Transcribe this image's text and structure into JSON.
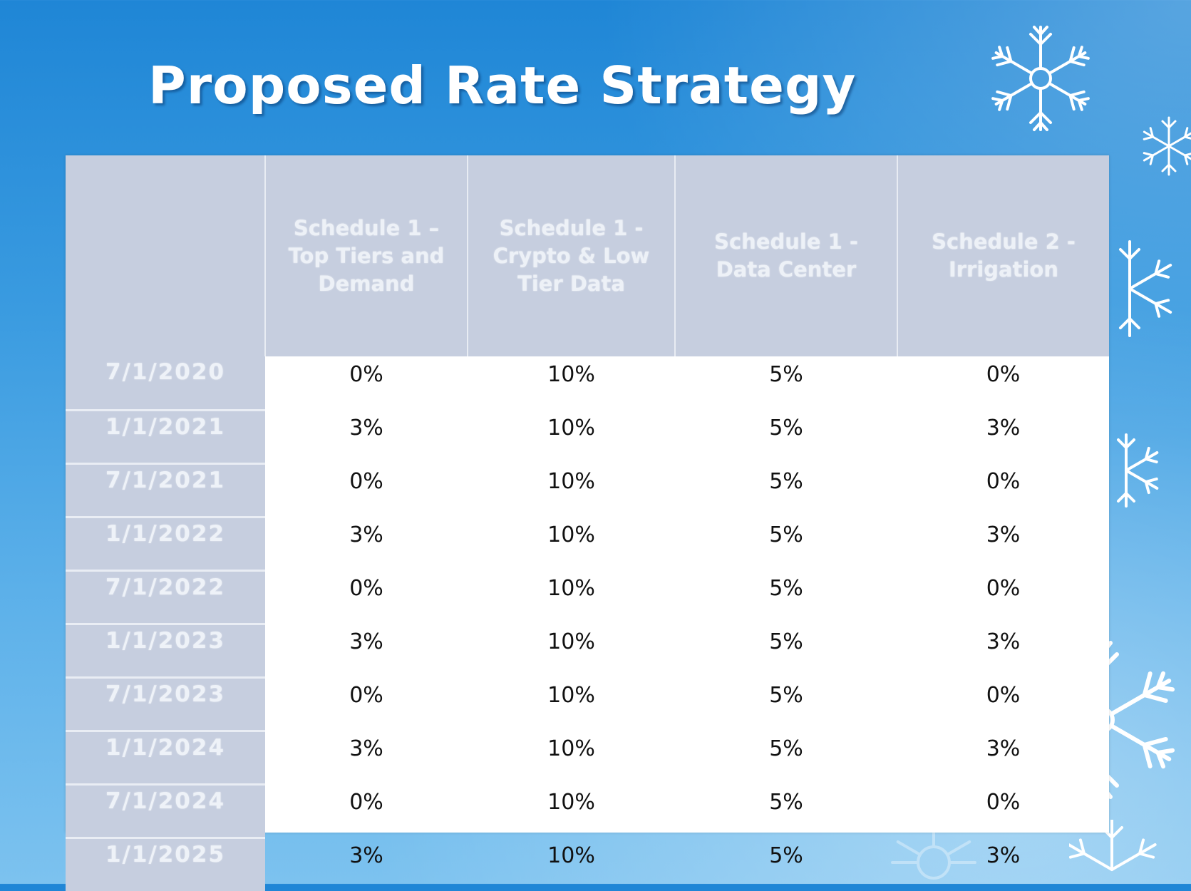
{
  "title": "Proposed Rate Strategy",
  "table": {
    "headers": [
      "",
      "Schedule 1 – Top Tiers and Demand",
      "Schedule 1 - Crypto & Low Tier Data",
      "Schedule 1 - Data Center",
      "Schedule 2 - Irrigation"
    ],
    "rows": [
      [
        "7/1/2020",
        "0%",
        "10%",
        "5%",
        "0%"
      ],
      [
        "1/1/2021",
        "3%",
        "10%",
        "5%",
        "3%"
      ],
      [
        "7/1/2021",
        "0%",
        "10%",
        "5%",
        "0%"
      ],
      [
        "1/1/2022",
        "3%",
        "10%",
        "5%",
        "3%"
      ],
      [
        "7/1/2022",
        "0%",
        "10%",
        "5%",
        "0%"
      ],
      [
        "1/1/2023",
        "3%",
        "10%",
        "5%",
        "3%"
      ],
      [
        "7/1/2023",
        "0%",
        "10%",
        "5%",
        "0%"
      ],
      [
        "1/1/2024",
        "3%",
        "10%",
        "5%",
        "3%"
      ],
      [
        "7/1/2024",
        "0%",
        "10%",
        "5%",
        "0%"
      ],
      [
        "1/1/2025",
        "3%",
        "10%",
        "5%",
        "3%"
      ]
    ]
  },
  "decorations": {
    "snowflake_icon": "snowflake-icon",
    "background_color": "#2f92dc",
    "header_fill": "#c6cedf"
  }
}
